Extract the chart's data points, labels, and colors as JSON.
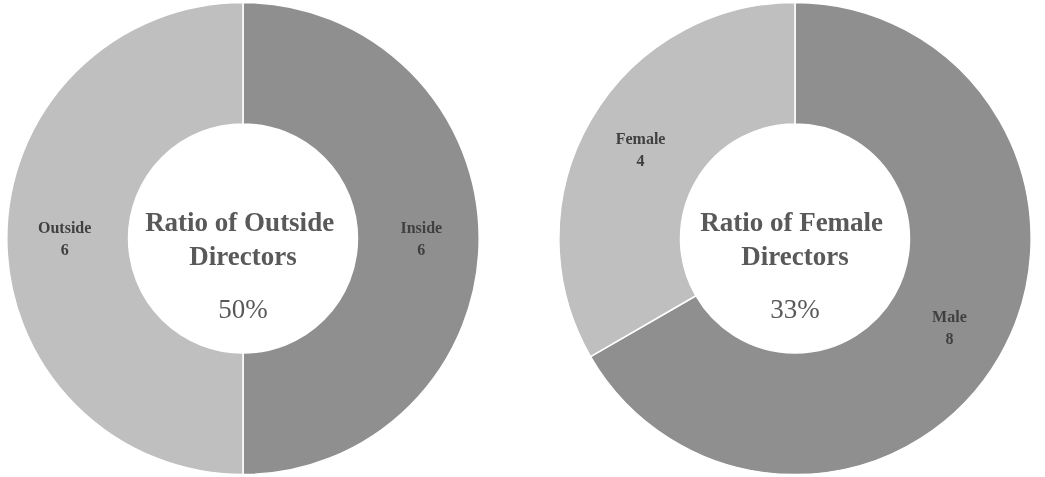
{
  "chart_data": [
    {
      "type": "donut",
      "title": "Ratio of Outside Directors",
      "subtitle": "50%",
      "categories": [
        "Inside",
        "Outside"
      ],
      "values": [
        6,
        6
      ],
      "colors": [
        "#8f8f8f",
        "#bfbfbf"
      ],
      "data_labels": true,
      "legend": false
    },
    {
      "type": "donut",
      "title": "Ratio of Female Directors",
      "subtitle": "33%",
      "categories": [
        "Male",
        "Female"
      ],
      "values": [
        8,
        4
      ],
      "colors": [
        "#8f8f8f",
        "#bfbfbf"
      ],
      "data_labels": true,
      "legend": false
    }
  ]
}
